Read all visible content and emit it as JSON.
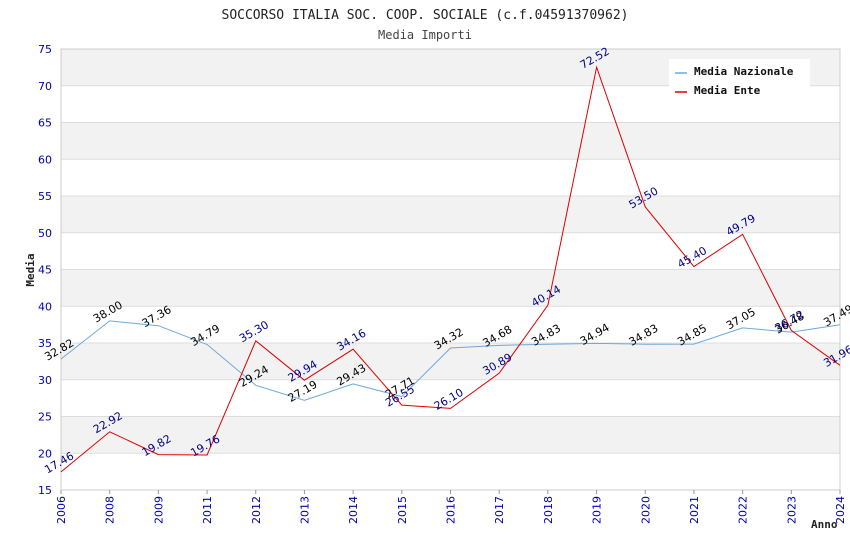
{
  "chart_data": {
    "type": "line",
    "title": "SOCCORSO ITALIA SOC. COOP. SOCIALE (c.f.04591370962)",
    "subtitle": "Media Importi",
    "xlabel": "Anno",
    "ylabel": "Media",
    "ylim": [
      15,
      75
    ],
    "yticks": [
      "15",
      "20",
      "25",
      "30",
      "35",
      "40",
      "45",
      "50",
      "55",
      "60",
      "65",
      "70",
      "75"
    ],
    "categories": [
      "2006",
      "2008",
      "2009",
      "2011",
      "2012",
      "2013",
      "2014",
      "2015",
      "2016",
      "2017",
      "2018",
      "2019",
      "2020",
      "2021",
      "2022",
      "2023",
      "2024"
    ],
    "series": [
      {
        "name": "Media Nazionale",
        "color": "#6ea8dc",
        "label_color": "#000000",
        "values": [
          32.82,
          38.0,
          37.36,
          34.79,
          29.24,
          27.19,
          29.43,
          27.71,
          34.32,
          34.68,
          34.83,
          34.94,
          34.83,
          34.85,
          37.05,
          36.48,
          37.49
        ],
        "labels": [
          "32.82",
          "38.00",
          "37.36",
          "34.79",
          "29.24",
          "27.19",
          "29.43",
          "27.71",
          "34.32",
          "34.68",
          "34.83",
          "34.94",
          "34.83",
          "34.85",
          "37.05",
          "36.48",
          "37.49"
        ]
      },
      {
        "name": "Media Ente",
        "color": "#dd0000",
        "label_color": "#000088",
        "values": [
          17.46,
          22.92,
          19.82,
          19.76,
          35.3,
          29.94,
          34.16,
          26.55,
          26.1,
          30.89,
          40.14,
          72.52,
          53.5,
          45.4,
          49.79,
          36.72,
          31.96
        ],
        "labels": [
          "17.46",
          "22.92",
          "19.82",
          "19.76",
          "35.30",
          "29.94",
          "34.16",
          "26.55",
          "26.10",
          "30.89",
          "40.14",
          "72.52",
          "53.50",
          "45.40",
          "49.79",
          "36.72",
          "31.96"
        ]
      }
    ],
    "grid": true,
    "legend_position": "top-right"
  }
}
